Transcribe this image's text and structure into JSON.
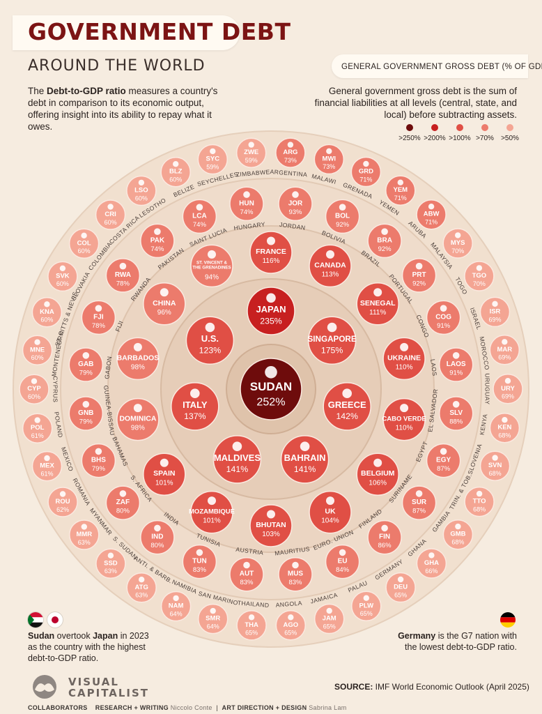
{
  "header": {
    "title": "GOVERNMENT DEBT",
    "subtitle": "AROUND THE WORLD",
    "intro_bold": "Debt-to-GDP ratio",
    "intro_pre": "The ",
    "intro_post": " measures a country's debt in comparison to its economic output, offering insight into its ability to repay what it owes."
  },
  "legend": {
    "title": "GENERAL GOVERNMENT GROSS DEBT (% OF GDP)",
    "definition": "General government gross debt is the sum of financial liabilities at all levels (central, state, and local) before subtracting assets.",
    "items": [
      {
        "label": ">250%",
        "color": "#6e0c0c"
      },
      {
        "label": ">200%",
        "color": "#c72020"
      },
      {
        "label": ">100%",
        "color": "#e04f45"
      },
      {
        "label": ">70%",
        "color": "#ec7b6c"
      },
      {
        "label": ">50%",
        "color": "#f4a593"
      }
    ]
  },
  "notes": {
    "left_bold_1": "Sudan",
    "left_mid": " overtook ",
    "left_bold_2": "Japan",
    "left_post": " in 2023 as the country with the highest debt-to-GDP ratio.",
    "right_bold": "Germany",
    "right_post": " is the G7 nation with the lowest debt-to-GDP ratio."
  },
  "footer": {
    "source_label": "SOURCE:",
    "source_text": " IMF World Economic Outlook (April 2025)",
    "logo_line1": "VISUAL",
    "logo_line2": "CAPITALIST",
    "collaborators": "COLLABORATORS",
    "research_label": "RESEARCH + WRITING",
    "research_name": "Niccolo Conte",
    "design_label": "ART DIRECTION + DESIGN",
    "design_name": "Sabrina Lam"
  },
  "chart_data": {
    "type": "bubble-rings",
    "unit": "% of GDP",
    "title": "GOVERNMENT DEBT",
    "subtitle": "AROUND THE WORLD",
    "rings": [
      {
        "level": 0,
        "countries": [
          {
            "name": "SUDAN",
            "value": 252
          }
        ]
      },
      {
        "level": 1,
        "countries": [
          {
            "name": "JAPAN",
            "value": 235
          },
          {
            "name": "SINGAPORE",
            "value": 175
          },
          {
            "name": "GREECE",
            "value": 142
          },
          {
            "name": "BAHRAIN",
            "value": 141
          },
          {
            "name": "MALDIVES",
            "value": 141
          },
          {
            "name": "ITALY",
            "value": 137
          },
          {
            "name": "U.S.",
            "value": 123
          }
        ]
      },
      {
        "level": 2,
        "countries": [
          {
            "name": "FRANCE",
            "value": 116
          },
          {
            "name": "CANADA",
            "value": 113
          },
          {
            "name": "SENEGAL",
            "value": 111
          },
          {
            "name": "UKRAINE",
            "value": 110
          },
          {
            "name": "CABO VERDE",
            "value": 110
          },
          {
            "name": "BELGIUM",
            "value": 106
          },
          {
            "name": "UK",
            "value": 104
          },
          {
            "name": "BHUTAN",
            "value": 103
          },
          {
            "name": "MOZAMBIQUE",
            "value": 101
          },
          {
            "name": "SPAIN",
            "value": 101
          },
          {
            "name": "DOMINICA",
            "value": 98
          },
          {
            "name": "BARBADOS",
            "value": 98
          },
          {
            "name": "CHINA",
            "value": 96
          },
          {
            "name": "ST. VINCENT & THE GRENADINES",
            "value": 94
          }
        ]
      },
      {
        "level": 3,
        "countries": [
          {
            "name": "JOR",
            "label": "JORDAN",
            "value": 93
          },
          {
            "name": "BOL",
            "label": "BOLIVIA",
            "value": 92
          },
          {
            "name": "BRA",
            "label": "BRAZIL",
            "value": 92
          },
          {
            "name": "PRT",
            "label": "PORTUGAL",
            "value": 92
          },
          {
            "name": "COG",
            "label": "CONGO",
            "value": 91
          },
          {
            "name": "LAOS",
            "label": "LAOS",
            "value": 91
          },
          {
            "name": "SLV",
            "label": "EL SALVADOR",
            "value": 88
          },
          {
            "name": "EGY",
            "label": "EGYPT",
            "value": 87
          },
          {
            "name": "SUR",
            "label": "SURINAME",
            "value": 87
          },
          {
            "name": "FIN",
            "label": "FINLAND",
            "value": 86
          },
          {
            "name": "EU",
            "label": "EURO. UNION",
            "value": 84
          },
          {
            "name": "MUS",
            "label": "MAURITIUS",
            "value": 83
          },
          {
            "name": "AUT",
            "label": "AUSTRIA",
            "value": 83
          },
          {
            "name": "TUN",
            "label": "TUNISIA",
            "value": 83
          },
          {
            "name": "IND",
            "label": "INDIA",
            "value": 80
          },
          {
            "name": "ZAF",
            "label": "S. AFRICA",
            "value": 80
          },
          {
            "name": "BHS",
            "label": "BAHAMAS",
            "value": 79
          },
          {
            "name": "GNB",
            "label": "GUINEA-BISSAU",
            "value": 79
          },
          {
            "name": "GAB",
            "label": "GABON",
            "value": 79
          },
          {
            "name": "FJI",
            "label": "FIJI",
            "value": 78
          },
          {
            "name": "RWA",
            "label": "RWANDA",
            "value": 78
          },
          {
            "name": "PAK",
            "label": "PAKISTAN",
            "value": 74
          },
          {
            "name": "LCA",
            "label": "SAINT LUCIA",
            "value": 74
          },
          {
            "name": "HUN",
            "label": "HUNGARY",
            "value": 74
          }
        ]
      },
      {
        "level": 4,
        "countries": [
          {
            "name": "ARG",
            "label": "ARGENTINA",
            "value": 73
          },
          {
            "name": "MWI",
            "label": "MALAWI",
            "value": 73
          },
          {
            "name": "GRD",
            "label": "GRENADA",
            "value": 71
          },
          {
            "name": "YEM",
            "label": "YEMEN",
            "value": 71
          },
          {
            "name": "ABW",
            "label": "ARUBA",
            "value": 71
          },
          {
            "name": "MYS",
            "label": "MALAYSIA",
            "value": 70
          },
          {
            "name": "TGO",
            "label": "TOGO",
            "value": 70
          },
          {
            "name": "ISR",
            "label": "ISRAEL",
            "value": 69
          },
          {
            "name": "MAR",
            "label": "MOROCCO",
            "value": 69
          },
          {
            "name": "URY",
            "label": "URUGUAY",
            "value": 69
          },
          {
            "name": "KEN",
            "label": "KENYA",
            "value": 68
          },
          {
            "name": "SVN",
            "label": "SLOVENIA",
            "value": 68
          },
          {
            "name": "TTO",
            "label": "TRIN. & TOB.",
            "value": 68
          },
          {
            "name": "GMB",
            "label": "GAMBIA",
            "value": 68
          },
          {
            "name": "GHA",
            "label": "GHANA",
            "value": 66
          },
          {
            "name": "DEU",
            "label": "GERMANY",
            "value": 65
          },
          {
            "name": "PLW",
            "label": "PALAU",
            "value": 65
          },
          {
            "name": "JAM",
            "label": "JAMAICA",
            "value": 65
          },
          {
            "name": "AGO",
            "label": "ANGOLA",
            "value": 65
          },
          {
            "name": "THA",
            "label": "THAILAND",
            "value": 65
          },
          {
            "name": "SMR",
            "label": "SAN MARINO",
            "value": 64
          },
          {
            "name": "NAM",
            "label": "NAMIBIA",
            "value": 64
          },
          {
            "name": "ATG",
            "label": "ANTI. & BARB.",
            "value": 63
          },
          {
            "name": "SSD",
            "label": "S. SUDAN",
            "value": 63
          },
          {
            "name": "MMR",
            "label": "MYANMAR",
            "value": 63
          },
          {
            "name": "ROU",
            "label": "ROMANIA",
            "value": 62
          },
          {
            "name": "MEX",
            "label": "MEXICO",
            "value": 61
          },
          {
            "name": "POL",
            "label": "POLAND",
            "value": 61
          },
          {
            "name": "CYP",
            "label": "CYPRUS",
            "value": 60
          },
          {
            "name": "MNE",
            "label": "MONTENEGRO",
            "value": 60
          },
          {
            "name": "KNA",
            "label": "ST. KITTS & NEVIS",
            "value": 60
          },
          {
            "name": "SVK",
            "label": "SLOVAKIA",
            "value": 60
          },
          {
            "name": "COL",
            "label": "COLOMBIA",
            "value": 60
          },
          {
            "name": "CRI",
            "label": "COSTA RICA",
            "value": 60
          },
          {
            "name": "LSO",
            "label": "LESOTHO",
            "value": 60
          },
          {
            "name": "BLZ",
            "label": "BELIZE",
            "value": 60
          },
          {
            "name": "SYC",
            "label": "SEYCHELLES",
            "value": 59
          },
          {
            "name": "ZWE",
            "label": "ZIMBABWE",
            "value": 59
          }
        ]
      }
    ]
  }
}
